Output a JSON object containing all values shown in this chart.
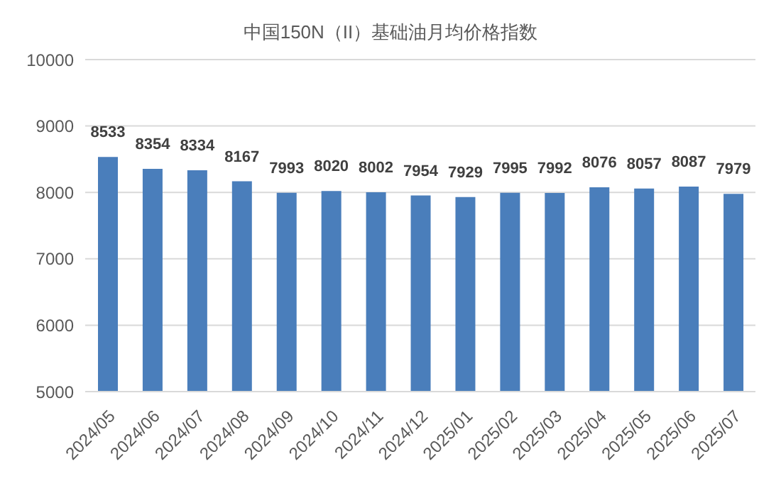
{
  "chart_data": {
    "type": "bar",
    "title": "中国150N（II）基础油月均价格指数",
    "categories": [
      "2024/05",
      "2024/06",
      "2024/07",
      "2024/08",
      "2024/09",
      "2024/10",
      "2024/11",
      "2024/12",
      "2025/01",
      "2025/02",
      "2025/03",
      "2025/04",
      "2025/05",
      "2025/06",
      "2025/07"
    ],
    "values": [
      8533,
      8354,
      8334,
      8167,
      7993,
      8020,
      8002,
      7954,
      7929,
      7995,
      7992,
      8076,
      8057,
      8087,
      7979
    ],
    "color": "#4a7ebb",
    "ylim": [
      5000,
      10000
    ],
    "yticks": [
      5000,
      6000,
      7000,
      8000,
      9000,
      10000
    ],
    "grid": "y",
    "data_labels": true,
    "legend": false
  }
}
